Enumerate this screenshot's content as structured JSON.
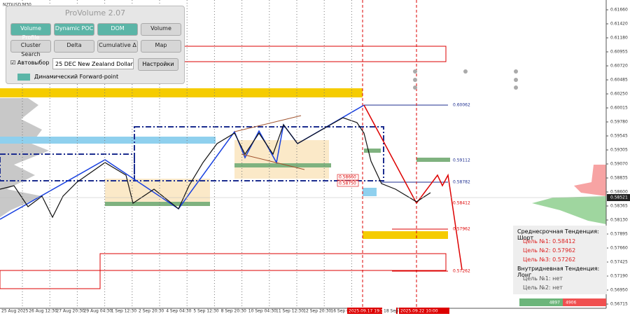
{
  "symbol": "NZDUSD,M30",
  "panel": {
    "title": "ProVolume 2.07",
    "buttons": [
      "Volume Profile",
      "Dynamic POC",
      "DOM",
      "Volume",
      "Cluster Search",
      "Delta",
      "Cumulative Δ",
      "Map"
    ],
    "auto_select": "Автовыбор",
    "instrument": "25 DEC New Zealand Dollar",
    "settings": "Настройки",
    "forward_point": "Динамический Forward-point"
  },
  "price_axis": [
    "0.61660",
    "0.61420",
    "0.61180",
    "0.60955",
    "0.60720",
    "0.60485",
    "0.60250",
    "0.60015",
    "0.59780",
    "0.59545",
    "0.59305",
    "0.59070",
    "0.58835",
    "0.58600",
    "0.58365",
    "0.58130",
    "0.57895",
    "0.57660",
    "0.57425",
    "0.57190",
    "0.56950",
    "0.56715"
  ],
  "current_price": "0.58521",
  "level_labels": [
    "0.60062",
    "0.59112",
    "0.58782",
    "0.58412",
    "0.57962",
    "0.57262"
  ],
  "poc_labels": [
    "0.58660",
    "0.58750"
  ],
  "time_axis": [
    "25 Aug 2025",
    "26 Aug 12:30",
    "27 Aug 20:30",
    "29 Aug 04:30",
    "1 Sep 12:30",
    "2 Sep 20:30",
    "4 Sep 04:30",
    "5 Sep 12:30",
    "8 Sep 20:30",
    "10 Sep 04:30",
    "11 Sep 12:30",
    "12 Sep 20:30",
    "16 Sep 04:30"
  ],
  "time_markers": [
    "2025.09.17 19:30",
    "18 Sep",
    "2025.09.22 10:00"
  ],
  "info": {
    "mid_trend": "Среднесрочная Тенденция: Шорт",
    "mid_targets": [
      "Цель №1: 0.58412",
      "Цель №2: 0.57962",
      "Цель №3: 0.57262"
    ],
    "intraday_trend": "Внутридневная Тенденция: Лонг",
    "intraday_targets": [
      "Цель №1: нет",
      "Цель №2: нет"
    ]
  },
  "volume_bar": [
    "4897",
    "4906"
  ]
}
